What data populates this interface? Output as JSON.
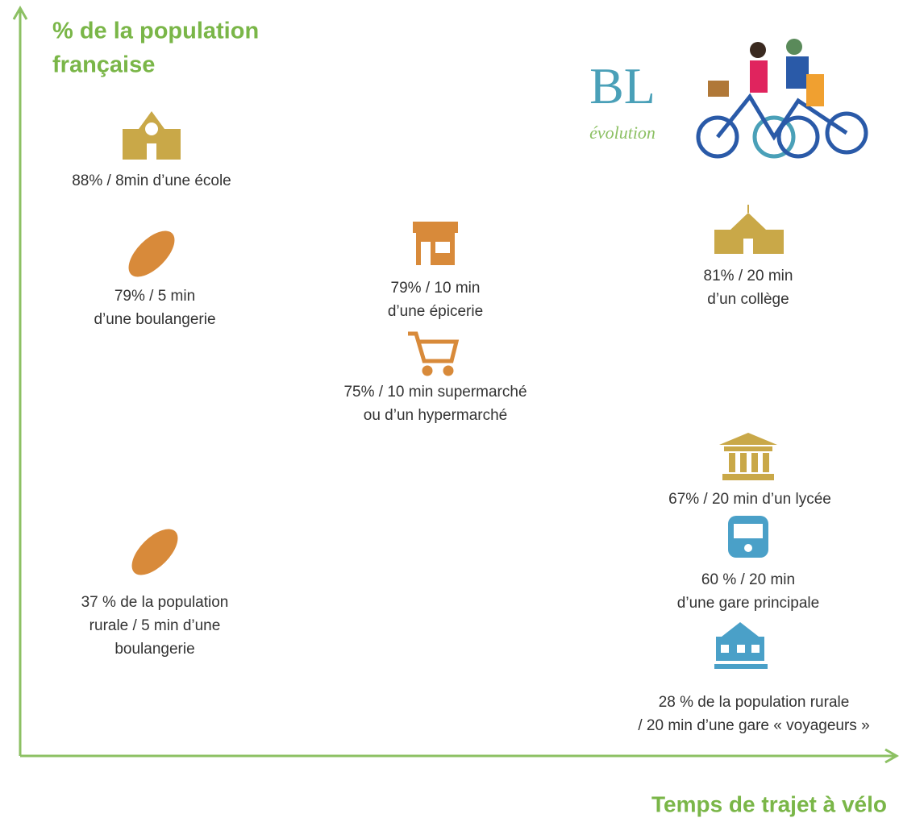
{
  "axis": {
    "y_label": [
      "% de la population",
      "française"
    ],
    "x_label": "Temps de trajet à vélo"
  },
  "logo": {
    "main": "BL",
    "sub": "évolution"
  },
  "items": [
    {
      "lines": [
        "88% / 8min d’une école"
      ]
    },
    {
      "lines": [
        "79% / 5 min",
        "d’une boulangerie"
      ]
    },
    {
      "lines": [
        "79% / 10 min",
        "d’une épicerie"
      ]
    },
    {
      "lines": [
        "75% / 10 min supermarché",
        "ou d’un hypermarché"
      ]
    },
    {
      "lines": [
        "81% / 20 min",
        "d’un collège"
      ]
    },
    {
      "lines": [
        "67% / 20 min d’un lycée"
      ]
    },
    {
      "lines": [
        "60 % / 20 min",
        "d’une gare principale"
      ]
    },
    {
      "lines": [
        "28 %  de la population rurale",
        "/ 20 min d’une gare « voyageurs »"
      ]
    },
    {
      "lines": [
        "37 %  de la population",
        "rurale / 5 min d’une",
        "boulangerie"
      ]
    }
  ]
}
